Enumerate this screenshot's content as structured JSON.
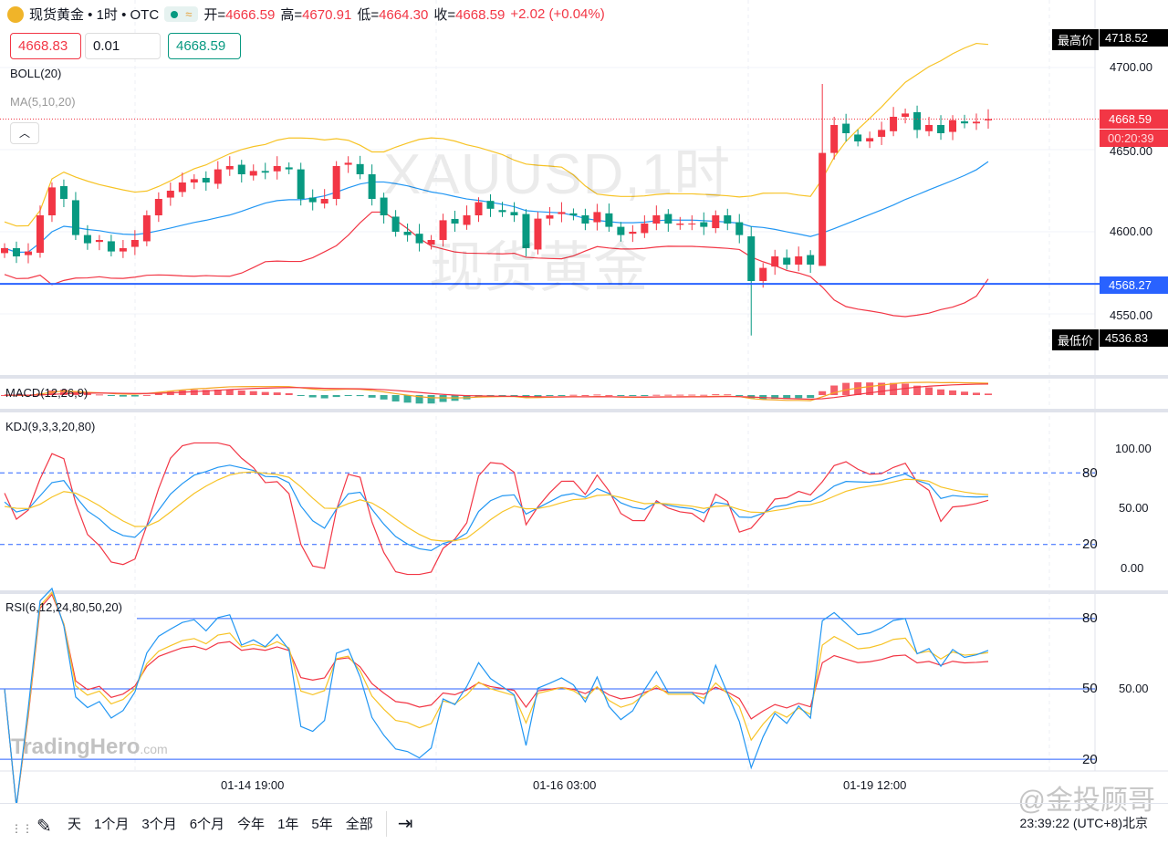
{
  "header": {
    "symbol": "现货黄金 • 1时 • OTC",
    "open_label": "开=",
    "open": "4666.59",
    "high_label": "高=",
    "high": "4670.91",
    "low_label": "低=",
    "low": "4664.30",
    "close_label": "收=",
    "close": "4668.59",
    "change": "+2.02 (+0.04%)"
  },
  "trade": {
    "sell": "4668.83",
    "qty": "0.01",
    "buy": "4668.59"
  },
  "indicators": {
    "boll": "BOLL(20)",
    "ma": "MA(5,10,20)",
    "macd": "MACD(12,26,9)",
    "kdj": "KDJ(9,3,3,20,80)",
    "rsi": "RSI(6,12,24,80,50,20)"
  },
  "watermark": {
    "line1": "XAUUSD,1时",
    "line2": "现货黄金",
    "brand": "TradingHero",
    "brand_suffix": ".com",
    "social": "@金投顾哥"
  },
  "price_axis": {
    "ticks": [
      "4700.00",
      "4650.00",
      "4600.00",
      "4550.00"
    ],
    "high_label": "最高价",
    "high_value": "4718.52",
    "low_label": "最低价",
    "low_value": "4536.83",
    "current": "4668.59",
    "countdown": "00:20:39",
    "line_value": "4568.27"
  },
  "kdj_axis": {
    "ticks": [
      "100.00",
      "50.00",
      "0.00"
    ],
    "upper": "80",
    "lower": "20"
  },
  "rsi_axis": {
    "upper": "80",
    "mid": "50",
    "mid_tick": "50.00",
    "lower": "20"
  },
  "time_axis": [
    "01-14 19:00",
    "01-16 03:00",
    "01-19 12:00"
  ],
  "toolbar": {
    "ranges": [
      "天",
      "1个月",
      "3个月",
      "6个月",
      "今年",
      "1年",
      "5年",
      "全部"
    ],
    "clock": "23:39:22 (UTC+8)北京"
  },
  "colors": {
    "up": "#f23645",
    "down": "#089981",
    "boll_upper": "#f7c325",
    "boll_mid": "#2196f3",
    "boll_lower": "#f23645",
    "hline": "#2962ff"
  },
  "chart_data": {
    "type": "candlestick",
    "interval": "1h",
    "ylim": [
      4520,
      4727
    ],
    "closes": [
      4590,
      4585,
      4588,
      4610,
      4627,
      4620,
      4598,
      4593,
      4595,
      4588,
      4590,
      4595,
      4610,
      4620,
      4625,
      4630,
      4632,
      4630,
      4638,
      4640,
      4635,
      4637,
      4636,
      4640,
      4638,
      4620,
      4618,
      4620,
      4640,
      4642,
      4635,
      4620,
      4610,
      4600,
      4598,
      4593,
      4595,
      4607,
      4605,
      4610,
      4618,
      4614,
      4612,
      4610,
      4590,
      4608,
      4610,
      4612,
      4610,
      4605,
      4612,
      4603,
      4598,
      4600,
      4605,
      4610,
      4605,
      4605,
      4605,
      4603,
      4610,
      4605,
      4598,
      4570,
      4578,
      4585,
      4580,
      4585,
      4580,
      4648,
      4665,
      4660,
      4655,
      4657,
      4662,
      4670,
      4672,
      4662,
      4665,
      4660,
      4668,
      4666,
      4667,
      4668.59
    ],
    "special_wicks": [
      {
        "index": 63,
        "low": 4536.83
      },
      {
        "index": 69,
        "high": 4690,
        "low": 4615
      }
    ],
    "hline": 4568.27
  }
}
